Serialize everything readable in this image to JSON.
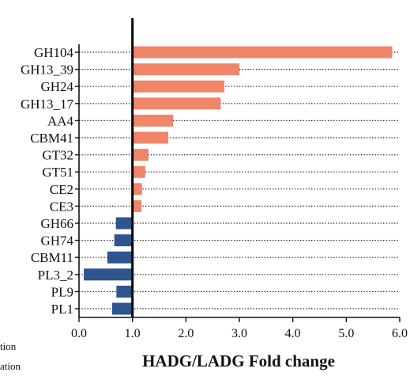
{
  "chart_data": {
    "type": "bar",
    "orientation": "horizontal",
    "categories": [
      "GH104",
      "GH13_39",
      "GH24",
      "GH13_17",
      "AA4",
      "CBM41",
      "GT32",
      "GT51",
      "CE2",
      "CE3",
      "GH66",
      "GH74",
      "CBM11",
      "PL3_2",
      "PL9",
      "PL1"
    ],
    "values": [
      5.86,
      3.0,
      2.72,
      2.65,
      1.76,
      1.67,
      1.3,
      1.24,
      1.18,
      1.17,
      0.69,
      0.66,
      0.53,
      0.09,
      0.7,
      0.62
    ],
    "baseline": 1.0,
    "xlabel": "HADG/LADG Fold change",
    "xlim": [
      0.0,
      6.0
    ],
    "xticks": [
      "0.0",
      "1.0",
      "2.0",
      "3.0",
      "4.0",
      "5.0",
      "6.0"
    ],
    "up_color": "#f0856a",
    "down_color": "#2e5590",
    "dotted_guides": true,
    "grid": false
  },
  "side_fragments": [
    "tion",
    "ation"
  ]
}
